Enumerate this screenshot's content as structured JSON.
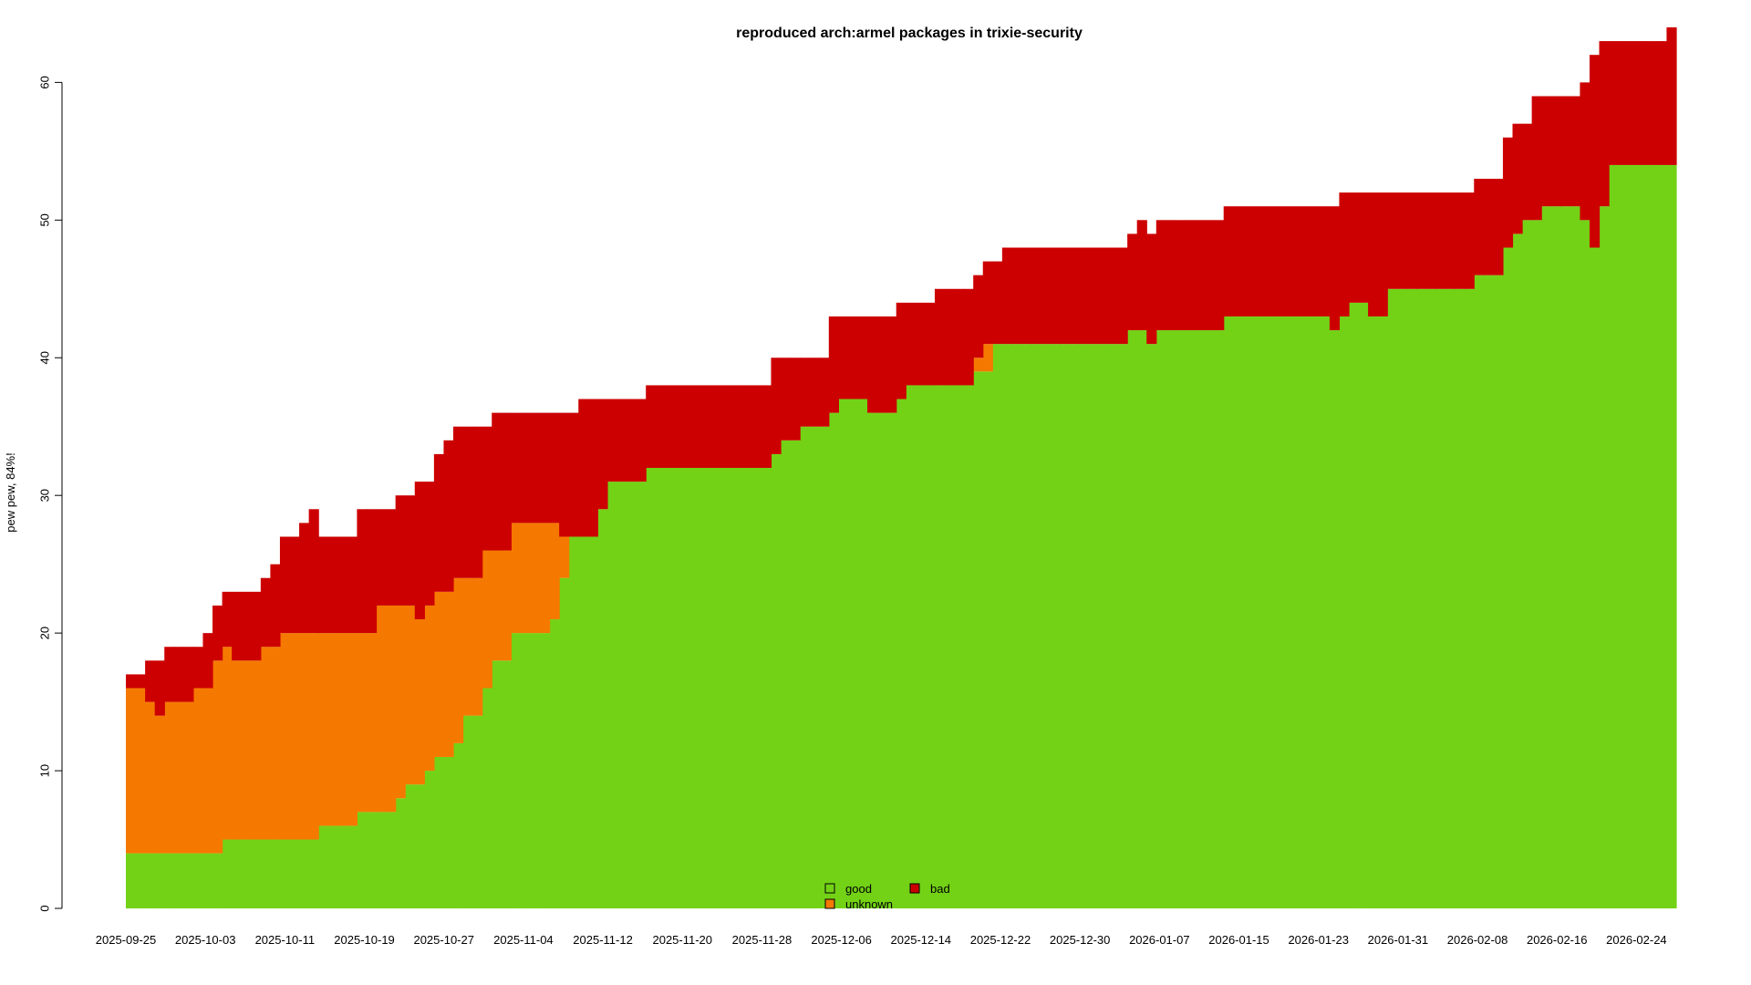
{
  "chart_data": {
    "type": "area",
    "stacked": true,
    "step": true,
    "title": "reproduced arch:armel packages in trixie-security",
    "xlabel": "",
    "ylabel": "pew pew, 84%!",
    "ylim": [
      0,
      64
    ],
    "xlim": [
      "2025-09-25",
      "2026-02-28"
    ],
    "x_ticks": [
      "2025-09-25",
      "2025-10-03",
      "2025-10-11",
      "2025-10-19",
      "2025-10-27",
      "2025-11-04",
      "2025-11-12",
      "2025-11-20",
      "2025-11-28",
      "2025-12-06",
      "2025-12-14",
      "2025-12-22",
      "2025-12-30",
      "2026-01-07",
      "2026-01-15",
      "2026-01-23",
      "2026-01-31",
      "2026-02-08",
      "2026-02-16",
      "2026-02-24"
    ],
    "y_ticks": [
      0,
      10,
      20,
      30,
      40,
      50,
      60
    ],
    "grid": false,
    "legend_position": "bottom-center",
    "series": [
      {
        "name": "good",
        "color": "#73d216",
        "values": [
          4,
          4,
          4,
          4,
          4,
          4,
          4,
          4,
          4,
          4,
          5,
          5,
          5,
          5,
          5,
          5,
          5,
          5,
          5,
          5,
          6,
          6,
          6,
          6,
          7,
          7,
          7,
          7,
          8,
          9,
          9,
          10,
          11,
          11,
          12,
          14,
          14,
          16,
          18,
          18,
          20,
          20,
          20,
          20,
          21,
          24,
          27,
          27,
          27,
          29,
          31,
          31,
          31,
          31,
          32,
          32,
          32,
          32,
          32,
          32,
          32,
          32,
          32,
          32,
          32,
          32,
          32,
          33,
          34,
          34,
          35,
          35,
          35,
          36,
          37,
          37,
          37,
          36,
          36,
          36,
          37,
          38,
          38,
          38,
          38,
          38,
          38,
          38,
          39,
          39,
          41,
          41,
          41,
          41,
          41,
          41,
          41,
          41,
          41,
          41,
          41,
          41,
          41,
          41,
          42,
          42,
          41,
          42,
          42,
          42,
          42,
          42,
          42,
          42,
          43,
          43,
          43,
          43,
          43,
          43,
          43,
          43,
          43,
          43,
          43,
          42,
          43,
          44,
          44,
          43,
          43,
          45,
          45,
          45,
          45,
          45,
          45,
          45,
          45,
          45,
          46,
          46,
          46,
          48,
          49,
          50,
          50,
          51,
          51,
          51,
          51,
          50,
          48,
          51,
          54,
          54,
          54,
          54,
          54,
          54,
          54
        ]
      },
      {
        "name": "unknown",
        "color": "#f57900",
        "values": [
          12,
          12,
          11,
          10,
          11,
          11,
          11,
          12,
          12,
          14,
          14,
          13,
          13,
          13,
          14,
          14,
          15,
          15,
          15,
          15,
          14,
          14,
          14,
          14,
          13,
          13,
          15,
          15,
          14,
          13,
          12,
          12,
          12,
          12,
          12,
          10,
          10,
          10,
          8,
          8,
          8,
          8,
          8,
          8,
          7,
          3,
          0,
          0,
          0,
          0,
          0,
          0,
          0,
          0,
          0,
          0,
          0,
          0,
          0,
          0,
          0,
          0,
          0,
          0,
          0,
          0,
          0,
          0,
          0,
          0,
          0,
          0,
          0,
          0,
          0,
          0,
          0,
          0,
          0,
          0,
          0,
          0,
          0,
          0,
          0,
          0,
          0,
          0,
          1,
          2,
          0,
          0,
          0,
          0,
          0,
          0,
          0,
          0,
          0,
          0,
          0,
          0,
          0,
          0,
          0,
          0,
          0,
          0,
          0,
          0,
          0,
          0,
          0,
          0,
          0,
          0,
          0,
          0,
          0,
          0,
          0,
          0,
          0,
          0,
          0,
          0,
          0,
          0,
          0,
          0,
          0,
          0,
          0,
          0,
          0,
          0,
          0,
          0,
          0,
          0,
          0,
          0,
          0,
          0,
          0,
          0,
          0,
          0,
          0,
          0,
          0,
          0,
          0,
          0,
          0,
          0,
          0,
          0,
          0,
          0,
          0
        ]
      },
      {
        "name": "bad",
        "color": "#cc0000",
        "values": [
          1,
          1,
          3,
          4,
          4,
          4,
          4,
          3,
          4,
          4,
          4,
          5,
          5,
          5,
          5,
          6,
          7,
          7,
          8,
          9,
          7,
          7,
          7,
          7,
          9,
          9,
          7,
          7,
          8,
          8,
          10,
          9,
          10,
          11,
          11,
          11,
          11,
          9,
          10,
          10,
          8,
          8,
          8,
          8,
          8,
          9,
          9,
          10,
          10,
          8,
          6,
          6,
          6,
          6,
          6,
          6,
          6,
          6,
          6,
          6,
          6,
          6,
          6,
          6,
          6,
          6,
          6,
          7,
          6,
          6,
          5,
          5,
          5,
          7,
          6,
          6,
          6,
          7,
          7,
          7,
          7,
          6,
          6,
          6,
          7,
          7,
          7,
          7,
          6,
          6,
          6,
          7,
          7,
          7,
          7,
          7,
          7,
          7,
          7,
          7,
          7,
          7,
          7,
          7,
          7,
          8,
          8,
          8,
          8,
          8,
          8,
          8,
          8,
          8,
          8,
          8,
          8,
          8,
          8,
          8,
          8,
          8,
          8,
          8,
          8,
          9,
          9,
          8,
          8,
          9,
          9,
          7,
          7,
          7,
          7,
          7,
          7,
          7,
          7,
          7,
          7,
          7,
          7,
          8,
          8,
          7,
          9,
          8,
          8,
          8,
          8,
          10,
          14,
          12,
          9,
          9,
          9,
          9,
          9,
          9,
          10
        ]
      }
    ]
  }
}
